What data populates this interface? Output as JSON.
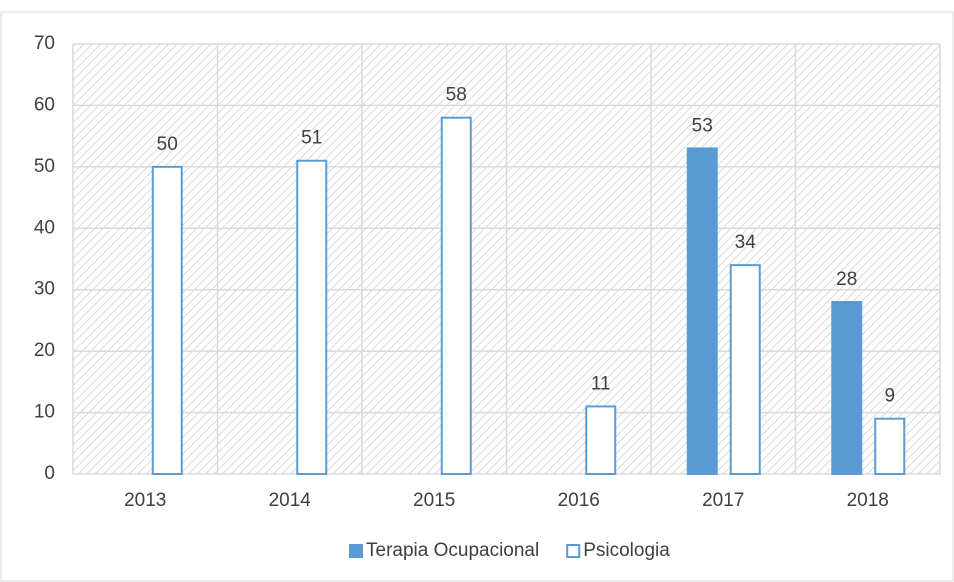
{
  "chart_data": {
    "type": "bar",
    "categories": [
      "2013",
      "2014",
      "2015",
      "2016",
      "2017",
      "2018"
    ],
    "series": [
      {
        "name": "Terapia Ocupacional",
        "color": "#5b9bd5",
        "fill": "#5b9bd5",
        "values": [
          null,
          null,
          null,
          null,
          53,
          28
        ]
      },
      {
        "name": "Psicologia",
        "color": "#5b9bd5",
        "fill": "#ffffff",
        "values": [
          50,
          51,
          58,
          11,
          34,
          9
        ]
      }
    ],
    "ylim": [
      0,
      70
    ],
    "yticks": [
      0,
      10,
      20,
      30,
      40,
      50,
      60,
      70
    ],
    "grid": true,
    "legend": "bottom"
  }
}
